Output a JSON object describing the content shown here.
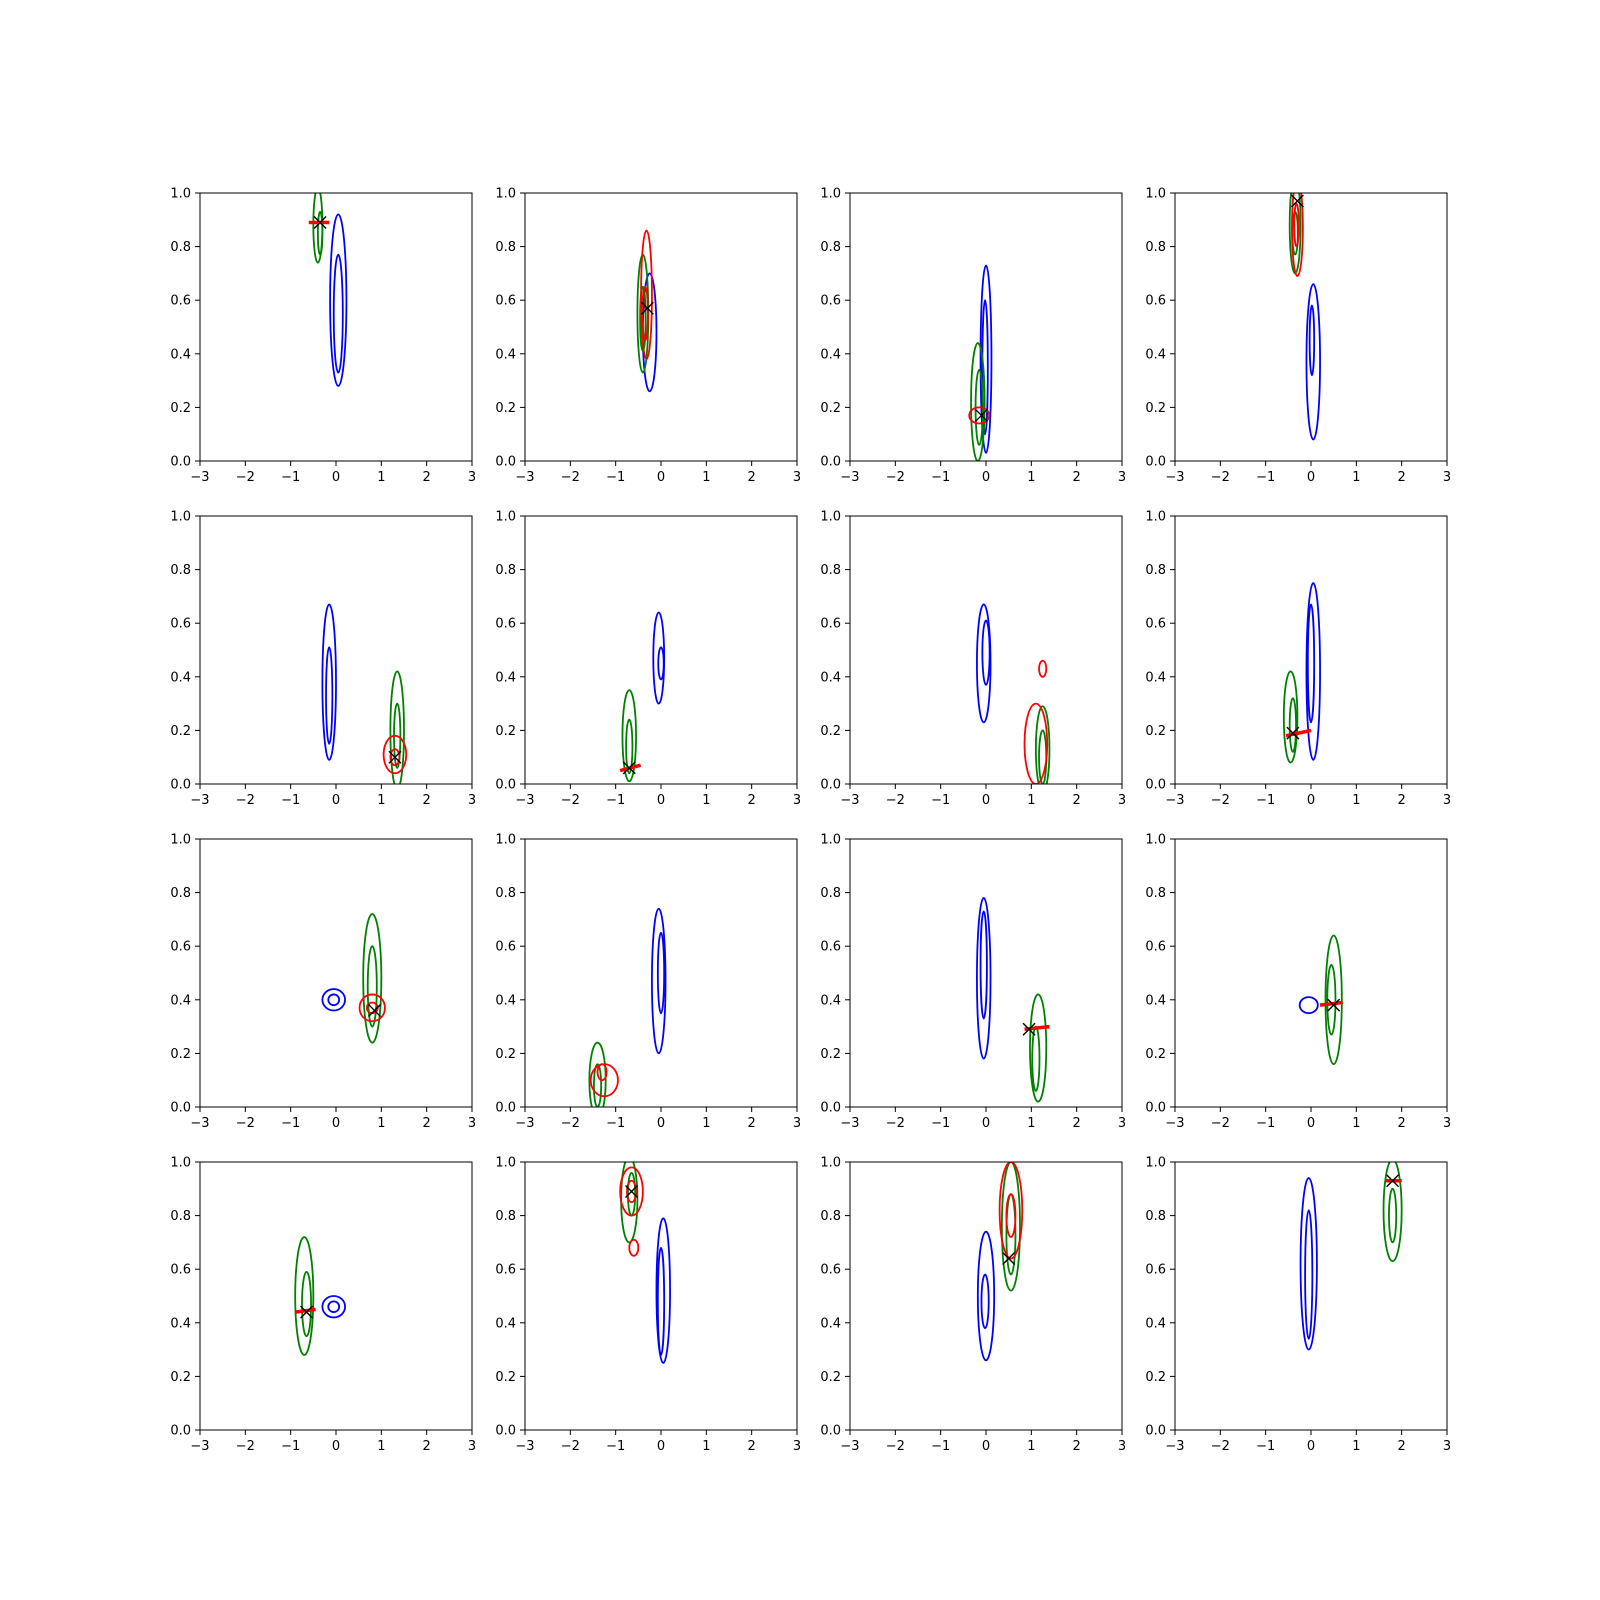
{
  "chart_data": {
    "type": "contour-grid",
    "title": "",
    "rows": 4,
    "cols": 4,
    "xlim": [
      -3,
      3
    ],
    "ylim": [
      0,
      1
    ],
    "xticks": [
      -3,
      -2,
      -1,
      0,
      1,
      2,
      3
    ],
    "yticks": [
      0.0,
      0.2,
      0.4,
      0.6,
      0.8,
      1.0
    ],
    "xtick_labels": [
      "−3",
      "−2",
      "−1",
      "0",
      "1",
      "2",
      "3"
    ],
    "ytick_labels": [
      "0.0",
      "0.2",
      "0.4",
      "0.6",
      "0.8",
      "1.0"
    ],
    "series_colors": {
      "blue": "#0000ff",
      "green": "#008000",
      "red": "#ff0000",
      "marker": "#000000"
    },
    "panels": [
      {
        "blue": [
          [
            0.05,
            0.6,
            0.18,
            0.32
          ],
          [
            0.05,
            0.55,
            0.1,
            0.22
          ]
        ],
        "green": [
          [
            -0.4,
            0.88,
            0.1,
            0.14
          ],
          [
            -0.35,
            0.85,
            0.05,
            0.08
          ]
        ],
        "red": [],
        "redLine": [
          [
            -0.6,
            -0.15
          ],
          [
            0.89,
            0.89
          ]
        ],
        "marker": [
          -0.35,
          0.89
        ]
      },
      {
        "blue": [
          [
            -0.25,
            0.48,
            0.15,
            0.22
          ]
        ],
        "green": [
          [
            -0.4,
            0.55,
            0.12,
            0.22
          ],
          [
            -0.4,
            0.53,
            0.06,
            0.12
          ]
        ],
        "red": [
          [
            -0.32,
            0.62,
            0.12,
            0.24
          ],
          [
            -0.35,
            0.55,
            0.06,
            0.1
          ]
        ],
        "redLine": null,
        "marker": [
          -0.3,
          0.57
        ]
      },
      {
        "blue": [
          [
            0.0,
            0.38,
            0.12,
            0.35
          ],
          [
            -0.02,
            0.35,
            0.06,
            0.25
          ]
        ],
        "green": [
          [
            -0.18,
            0.22,
            0.15,
            0.22
          ],
          [
            -0.15,
            0.2,
            0.08,
            0.14
          ]
        ],
        "red": [
          [
            -0.15,
            0.17,
            0.22,
            0.03
          ]
        ],
        "redLine": null,
        "marker": [
          -0.1,
          0.17
        ]
      },
      {
        "blue": [
          [
            0.05,
            0.37,
            0.15,
            0.29
          ],
          [
            0.02,
            0.45,
            0.05,
            0.13
          ]
        ],
        "green": [
          [
            -0.35,
            0.88,
            0.12,
            0.18
          ],
          [
            -0.35,
            0.85,
            0.06,
            0.08
          ]
        ],
        "red": [
          [
            -0.3,
            0.87,
            0.12,
            0.18
          ],
          [
            -0.32,
            0.88,
            0.05,
            0.08
          ]
        ],
        "redLine": null,
        "marker": [
          -0.3,
          0.97
        ]
      },
      {
        "blue": [
          [
            -0.15,
            0.38,
            0.15,
            0.29
          ],
          [
            -0.15,
            0.33,
            0.07,
            0.18
          ]
        ],
        "green": [
          [
            1.35,
            0.2,
            0.15,
            0.22
          ],
          [
            1.35,
            0.18,
            0.07,
            0.12
          ]
        ],
        "red": [
          [
            1.3,
            0.11,
            0.25,
            0.07
          ],
          [
            1.3,
            0.1,
            0.1,
            0.03
          ]
        ],
        "redLine": null,
        "marker": [
          1.3,
          0.1
        ]
      },
      {
        "blue": [
          [
            -0.05,
            0.47,
            0.12,
            0.17
          ],
          [
            0.0,
            0.45,
            0.06,
            0.06
          ]
        ],
        "green": [
          [
            -0.7,
            0.18,
            0.15,
            0.17
          ],
          [
            -0.7,
            0.14,
            0.07,
            0.1
          ]
        ],
        "red": [],
        "redLine": [
          [
            -0.9,
            -0.45
          ],
          [
            0.05,
            0.07
          ]
        ],
        "marker": [
          -0.7,
          0.06
        ]
      },
      {
        "blue": [
          [
            -0.05,
            0.45,
            0.15,
            0.22
          ],
          [
            0.0,
            0.49,
            0.08,
            0.12
          ]
        ],
        "green": [
          [
            1.25,
            0.13,
            0.15,
            0.16
          ],
          [
            1.25,
            0.1,
            0.08,
            0.1
          ]
        ],
        "red": [
          [
            1.1,
            0.15,
            0.25,
            0.15
          ],
          [
            1.25,
            0.43,
            0.08,
            0.03
          ]
        ],
        "redLine": null,
        "marker": null
      },
      {
        "blue": [
          [
            0.05,
            0.42,
            0.15,
            0.33
          ],
          [
            0.0,
            0.45,
            0.07,
            0.22
          ]
        ],
        "green": [
          [
            -0.45,
            0.25,
            0.15,
            0.17
          ],
          [
            -0.4,
            0.22,
            0.07,
            0.1
          ]
        ],
        "red": [],
        "redLine": [
          [
            -0.55,
            0.0
          ],
          [
            0.18,
            0.2
          ]
        ],
        "marker": [
          -0.4,
          0.19
        ]
      },
      {
        "blue": [
          [
            -0.05,
            0.4,
            0.25,
            0.04
          ],
          [
            -0.05,
            0.4,
            0.12,
            0.02
          ]
        ],
        "green": [
          [
            0.8,
            0.48,
            0.2,
            0.24
          ],
          [
            0.8,
            0.45,
            0.1,
            0.15
          ]
        ],
        "red": [
          [
            0.8,
            0.37,
            0.28,
            0.05
          ],
          [
            0.8,
            0.37,
            0.12,
            0.02
          ]
        ],
        "redLine": null,
        "marker": [
          0.85,
          0.36
        ]
      },
      {
        "blue": [
          [
            -0.05,
            0.47,
            0.15,
            0.27
          ],
          [
            0.0,
            0.5,
            0.07,
            0.15
          ]
        ],
        "green": [
          [
            -1.4,
            0.1,
            0.18,
            0.14
          ],
          [
            -1.4,
            0.08,
            0.08,
            0.08
          ]
        ],
        "red": [
          [
            -1.25,
            0.1,
            0.3,
            0.06
          ],
          [
            -1.3,
            0.13,
            0.1,
            0.03
          ]
        ],
        "redLine": null,
        "marker": null
      },
      {
        "blue": [
          [
            -0.05,
            0.48,
            0.15,
            0.3
          ],
          [
            -0.05,
            0.53,
            0.07,
            0.2
          ]
        ],
        "green": [
          [
            1.15,
            0.22,
            0.18,
            0.2
          ],
          [
            1.1,
            0.18,
            0.08,
            0.12
          ]
        ],
        "red": [],
        "redLine": [
          [
            0.85,
            1.4
          ],
          [
            0.29,
            0.3
          ]
        ],
        "marker": [
          0.95,
          0.29
        ]
      },
      {
        "blue": [
          [
            -0.05,
            0.38,
            0.2,
            0.03
          ]
        ],
        "green": [
          [
            0.5,
            0.4,
            0.18,
            0.24
          ],
          [
            0.45,
            0.4,
            0.09,
            0.13
          ]
        ],
        "red": [],
        "redLine": [
          [
            0.2,
            0.7
          ],
          [
            0.38,
            0.39
          ]
        ],
        "marker": [
          0.5,
          0.38
        ]
      },
      {
        "blue": [
          [
            -0.05,
            0.46,
            0.25,
            0.04
          ],
          [
            -0.05,
            0.46,
            0.12,
            0.02
          ]
        ],
        "green": [
          [
            -0.7,
            0.5,
            0.2,
            0.22
          ],
          [
            -0.65,
            0.47,
            0.1,
            0.12
          ]
        ],
        "red": [],
        "redLine": [
          [
            -0.9,
            -0.45
          ],
          [
            0.44,
            0.45
          ]
        ],
        "marker": [
          -0.65,
          0.44
        ]
      },
      {
        "blue": [
          [
            0.05,
            0.52,
            0.15,
            0.27
          ],
          [
            0.0,
            0.48,
            0.07,
            0.2
          ]
        ],
        "green": [
          [
            -0.7,
            0.86,
            0.18,
            0.16
          ],
          [
            -0.65,
            0.88,
            0.08,
            0.08
          ]
        ],
        "red": [
          [
            -0.65,
            0.89,
            0.25,
            0.09
          ],
          [
            -0.65,
            0.89,
            0.1,
            0.04
          ],
          [
            -0.6,
            0.68,
            0.1,
            0.03
          ]
        ],
        "redLine": null,
        "marker": [
          -0.65,
          0.89
        ]
      },
      {
        "blue": [
          [
            0.0,
            0.5,
            0.18,
            0.24
          ],
          [
            -0.02,
            0.48,
            0.08,
            0.1
          ]
        ],
        "green": [
          [
            0.55,
            0.76,
            0.2,
            0.24
          ],
          [
            0.55,
            0.73,
            0.1,
            0.15
          ]
        ],
        "red": [
          [
            0.55,
            0.82,
            0.25,
            0.18
          ],
          [
            0.55,
            0.8,
            0.1,
            0.08
          ]
        ],
        "redLine": null,
        "marker": [
          0.5,
          0.64
        ]
      },
      {
        "blue": [
          [
            -0.05,
            0.62,
            0.18,
            0.32
          ],
          [
            -0.05,
            0.58,
            0.08,
            0.24
          ]
        ],
        "green": [
          [
            1.8,
            0.82,
            0.2,
            0.19
          ],
          [
            1.8,
            0.8,
            0.08,
            0.1
          ]
        ],
        "red": [],
        "redLine": [
          [
            1.65,
            2.0
          ],
          [
            0.93,
            0.93
          ]
        ],
        "marker": [
          1.8,
          0.93
        ]
      }
    ]
  }
}
